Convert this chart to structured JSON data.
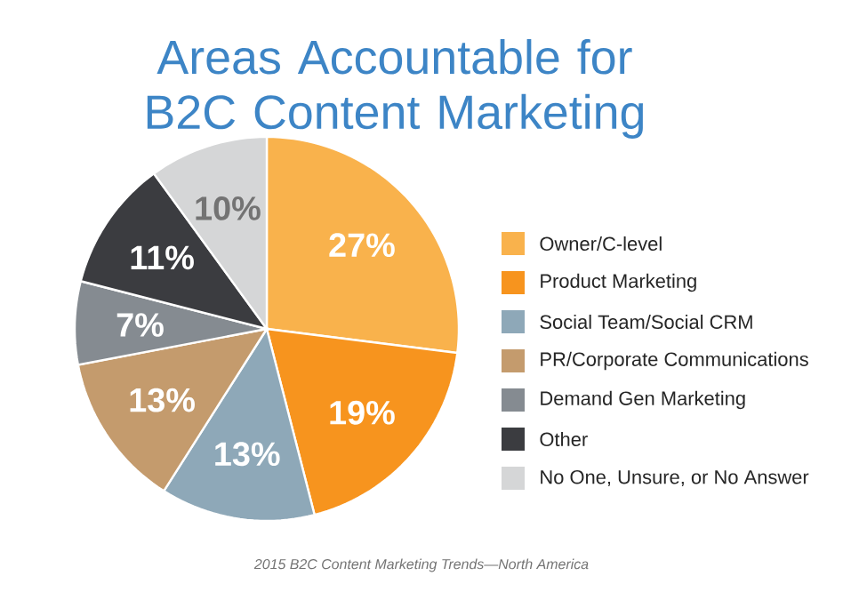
{
  "chart_data": {
    "type": "pie",
    "title": "Areas Accountable for B2C Content Marketing",
    "categories": [
      "Owner/C-level",
      "Product Marketing",
      "Social Team/Social CRM",
      "PR/Corporate Communications",
      "Demand Gen Marketing",
      "Other",
      "No One, Unsure, or No Answer"
    ],
    "values": [
      27,
      19,
      13,
      13,
      7,
      11,
      10
    ],
    "value_labels": [
      "27%",
      "19%",
      "13%",
      "13%",
      "7%",
      "11%",
      "10%"
    ],
    "colors": [
      "#f9b24c",
      "#f7941e",
      "#8ea8b8",
      "#c49b6d",
      "#858b91",
      "#3b3c40",
      "#d5d6d7"
    ],
    "legend": "right",
    "annotations": [
      "2015 B2C Content Marketing Trends—North America"
    ]
  }
}
